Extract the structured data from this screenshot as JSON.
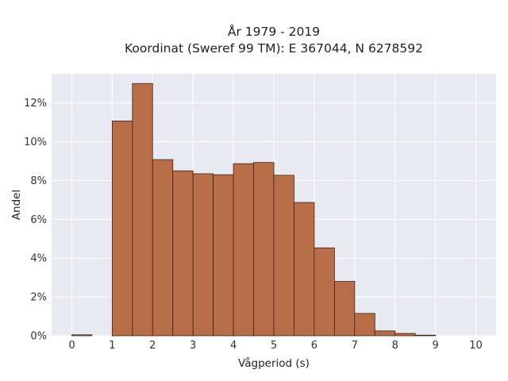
{
  "chart_data": {
    "type": "bar",
    "title_line1": "År 1979 - 2019",
    "title_line2": "Koordinat (Sweref 99 TM): E 367044, N 6278592",
    "xlabel": "Vågperiod (s)",
    "ylabel": "Andel",
    "xlim": [
      -0.5,
      10.5
    ],
    "ylim": [
      0,
      13.5
    ],
    "x_ticks": [
      0,
      1,
      2,
      3,
      4,
      5,
      6,
      7,
      8,
      9,
      10
    ],
    "y_ticks": [
      0,
      2,
      4,
      6,
      8,
      10,
      12
    ],
    "y_tick_labels": [
      "0%",
      "2%",
      "4%",
      "6%",
      "8%",
      "10%",
      "12%"
    ],
    "bin_width": 0.5,
    "bins": [
      {
        "x_start": 0.0,
        "value": 0.05
      },
      {
        "x_start": 0.5,
        "value": 0.0
      },
      {
        "x_start": 1.0,
        "value": 11.07
      },
      {
        "x_start": 1.5,
        "value": 13.0
      },
      {
        "x_start": 2.0,
        "value": 9.08
      },
      {
        "x_start": 2.5,
        "value": 8.5
      },
      {
        "x_start": 3.0,
        "value": 8.35
      },
      {
        "x_start": 3.5,
        "value": 8.3
      },
      {
        "x_start": 4.0,
        "value": 8.87
      },
      {
        "x_start": 4.5,
        "value": 8.93
      },
      {
        "x_start": 5.0,
        "value": 8.27
      },
      {
        "x_start": 5.5,
        "value": 6.87
      },
      {
        "x_start": 6.0,
        "value": 4.53
      },
      {
        "x_start": 6.5,
        "value": 2.8
      },
      {
        "x_start": 7.0,
        "value": 1.15
      },
      {
        "x_start": 7.5,
        "value": 0.25
      },
      {
        "x_start": 8.0,
        "value": 0.12
      },
      {
        "x_start": 8.5,
        "value": 0.03
      }
    ],
    "bar_color": "#b86e49",
    "bar_edge_color": "#3a2418",
    "plot_background": "#e9e9f2",
    "grid": true,
    "grid_color": "#ffffff"
  }
}
